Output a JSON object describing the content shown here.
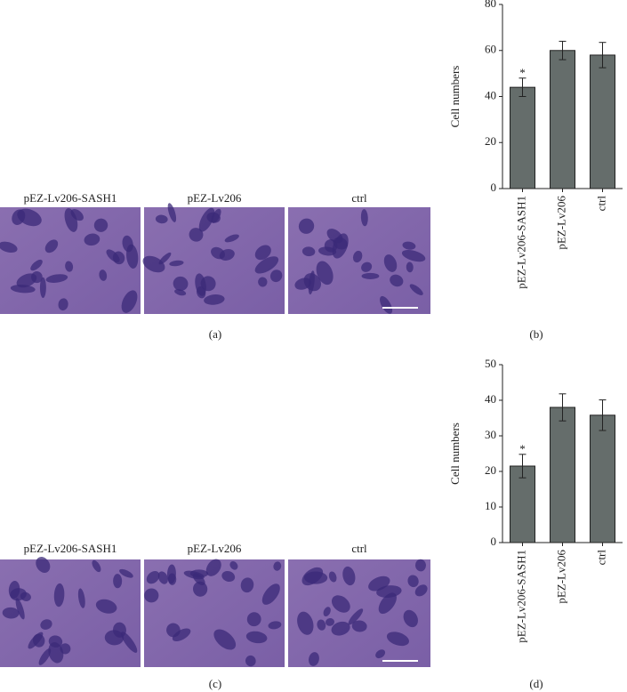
{
  "images": [
    {
      "panel_label": "(a)",
      "labels": [
        "pEZ-Lv206-SASH1",
        "pEZ-Lv206",
        "ctrl"
      ]
    },
    {
      "panel_label": "(c)",
      "labels": [
        "pEZ-Lv206-SASH1",
        "pEZ-Lv206",
        "ctrl"
      ]
    }
  ],
  "chart_data": [
    {
      "type": "bar",
      "panel_label": "(b)",
      "ylabel": "Cell numbers",
      "categories": [
        "pEZ-Lv206-SASH1",
        "pEZ-Lv206",
        "ctrl"
      ],
      "values": [
        44,
        60,
        58
      ],
      "errors": [
        4,
        4,
        5.5
      ],
      "color": "#656d6b",
      "ylim": [
        0,
        80
      ],
      "yticks": [
        0,
        20,
        40,
        60,
        80
      ],
      "annotations": [
        {
          "text": "*",
          "category": 0
        }
      ]
    },
    {
      "type": "bar",
      "panel_label": "(d)",
      "ylabel": "Cell numbers",
      "categories": [
        "pEZ-Lv206-SASH1",
        "pEZ-Lv206",
        "ctrl"
      ],
      "values": [
        21.5,
        38,
        35.8
      ],
      "errors": [
        3.3,
        3.8,
        4.3
      ],
      "color": "#656d6b",
      "ylim": [
        0,
        50
      ],
      "yticks": [
        0,
        10,
        20,
        30,
        40,
        50
      ],
      "annotations": [
        {
          "text": "*",
          "category": 0
        }
      ]
    }
  ]
}
